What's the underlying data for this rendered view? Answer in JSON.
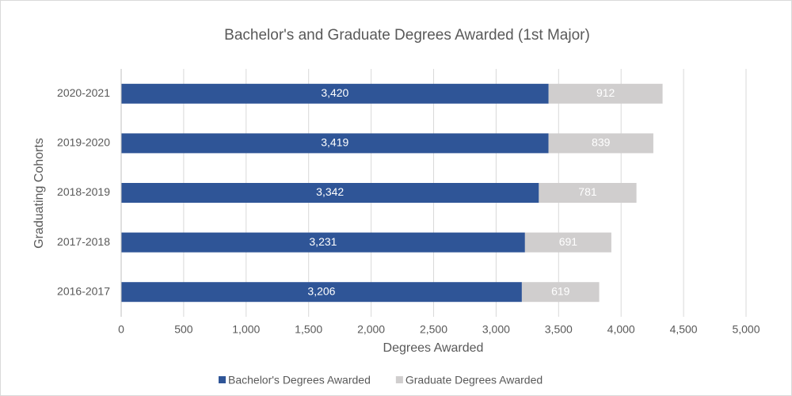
{
  "chart_data": {
    "type": "bar",
    "orientation": "horizontal",
    "stacked": true,
    "title": "Bachelor's and Graduate Degrees Awarded (1st Major)",
    "xlabel": "Degrees Awarded",
    "ylabel": "Graduating Cohorts",
    "categories": [
      "2020-2021",
      "2019-2020",
      "2018-2019",
      "2017-2018",
      "2016-2017"
    ],
    "series": [
      {
        "name": "Bachelor's Degrees Awarded",
        "color": "#2f5597",
        "label_color": "#ffffff",
        "values": [
          3420,
          3419,
          3342,
          3231,
          3206
        ],
        "value_labels": [
          "3,420",
          "3,419",
          "3,342",
          "3,231",
          "3,206"
        ]
      },
      {
        "name": "Graduate Degrees Awarded",
        "color": "#d0cece",
        "label_color": "#ffffff",
        "values": [
          912,
          839,
          781,
          691,
          619
        ]
      }
    ],
    "xlim": [
      0,
      5000
    ],
    "xticks": [
      0,
      500,
      {
        "value": 1000,
        "label": "1,000"
      },
      {
        "value": 1500,
        "label": "1,500"
      },
      {
        "value": 2000,
        "label": "2,000"
      },
      {
        "value": 2500,
        "label": "2,500"
      },
      {
        "value": 3000,
        "label": "3,000"
      },
      {
        "value": 3500,
        "label": "3,500"
      },
      {
        "value": 4000,
        "label": "4,000"
      },
      {
        "value": 4500,
        "label": "4,500"
      },
      {
        "value": 5000,
        "label": "5,000"
      }
    ],
    "grid": true,
    "legend": "bottom"
  }
}
